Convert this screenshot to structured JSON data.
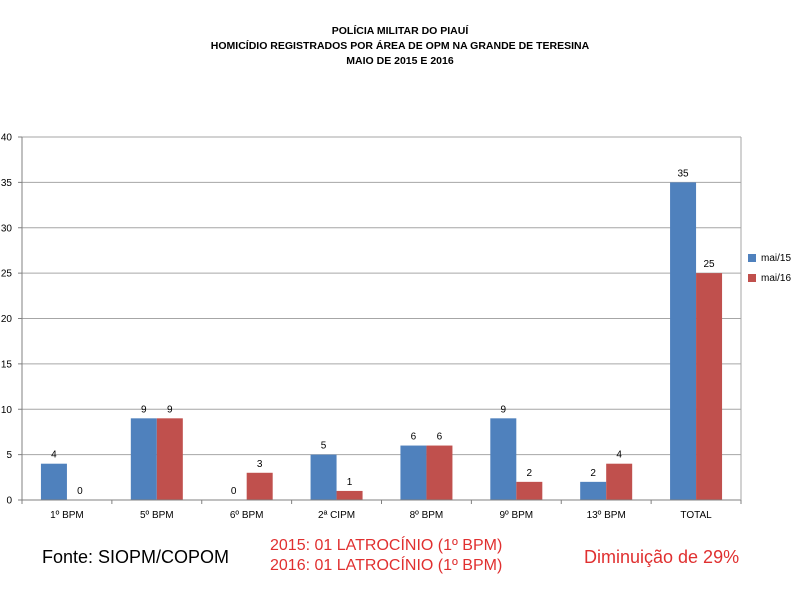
{
  "title": {
    "line1": "POLÍCIA MILITAR DO PIAUÍ",
    "line2": "HOMICÍDIO REGISTRADOS  POR ÁREA DE OPM  NA  GRANDE  DE TERESINA",
    "line3": "MAIO DE 2015 E 2016"
  },
  "chart_data": {
    "type": "bar",
    "categories": [
      "1º BPM",
      "5º BPM",
      "6º BPM",
      "2ª CIPM",
      "8º BPM",
      "9º BPM",
      "13º BPM",
      "TOTAL"
    ],
    "series": [
      {
        "name": "mai/15",
        "color": "#4f81bd",
        "values": [
          4,
          9,
          0,
          5,
          6,
          9,
          2,
          35
        ]
      },
      {
        "name": "mai/16",
        "color": "#c0504d",
        "values": [
          0,
          9,
          3,
          1,
          6,
          2,
          4,
          25
        ]
      }
    ],
    "ylim": [
      0,
      40
    ],
    "yticks": [
      0,
      5,
      10,
      15,
      20,
      25,
      30,
      35,
      40
    ],
    "grid": true,
    "legend": "right"
  },
  "footer": {
    "source": "Fonte: SIOPM/COPOM",
    "note1": "2015: 01 LATROCÍNIO (1º BPM)",
    "note2": "2016: 01 LATROCÍNIO (1º BPM)",
    "decrease": "Diminuição de 29%"
  }
}
